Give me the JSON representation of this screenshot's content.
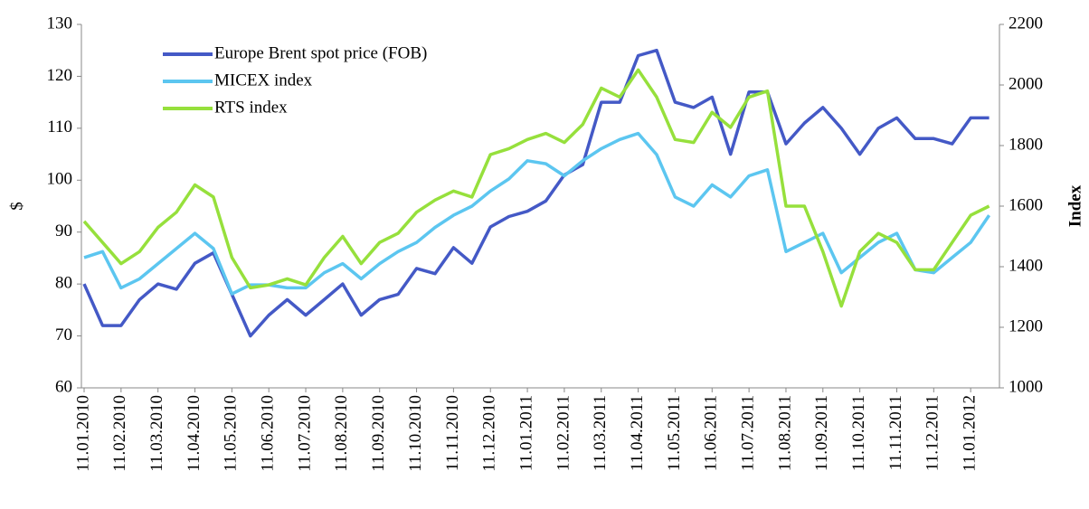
{
  "chart_data": {
    "type": "line",
    "ylabel": "$",
    "y2label": "Index",
    "categories": [
      "11.01.2010",
      null,
      "11.02.2010",
      null,
      "11.03.2010",
      null,
      "11.04.2010",
      null,
      "11.05.2010",
      null,
      "11.06.2010",
      null,
      "11.07.2010",
      null,
      "11.08.2010",
      null,
      "11.09.2010",
      null,
      "11.10.2010",
      null,
      "11.11.2010",
      null,
      "11.12.2010",
      null,
      "11.01.2011",
      null,
      "11.02.2011",
      null,
      "11.03.2011",
      null,
      "11.04.2011",
      null,
      "11.05.2011",
      null,
      "11.06.2011",
      null,
      "11.07.2011",
      null,
      "11.08.2011",
      null,
      "11.09.2011",
      null,
      "11.10.2011",
      null,
      "11.11.2011",
      null,
      "11.12.2011",
      null,
      "11.01.2012",
      null
    ],
    "series": [
      {
        "name": "Europe Brent spot price (FOB)",
        "color": "#4459c6",
        "axis": "y",
        "values": [
          80,
          72,
          72,
          77,
          80,
          79,
          84,
          86,
          78,
          70,
          74,
          77,
          74,
          77,
          80,
          74,
          77,
          78,
          83,
          82,
          87,
          84,
          91,
          93,
          94,
          96,
          101,
          103,
          115,
          115,
          124,
          125,
          115,
          114,
          116,
          105,
          117,
          117,
          107,
          111,
          114,
          110,
          105,
          110,
          112,
          108,
          108,
          107,
          112,
          112
        ]
      },
      {
        "name": "MICEX index",
        "color": "#5cc6f0",
        "axis": "y2",
        "values": [
          1430,
          1450,
          1330,
          1360,
          1410,
          1460,
          1510,
          1460,
          1310,
          1340,
          1340,
          1330,
          1330,
          1380,
          1410,
          1360,
          1410,
          1450,
          1480,
          1530,
          1570,
          1600,
          1650,
          1690,
          1750,
          1740,
          1700,
          1750,
          1790,
          1820,
          1840,
          1770,
          1630,
          1600,
          1670,
          1630,
          1700,
          1720,
          1450,
          1480,
          1510,
          1380,
          1430,
          1480,
          1510,
          1390,
          1380,
          1430,
          1480,
          1570
        ]
      },
      {
        "name": "RTS index",
        "color": "#96e03c",
        "axis": "y2",
        "values": [
          1550,
          1480,
          1410,
          1450,
          1530,
          1580,
          1670,
          1630,
          1430,
          1330,
          1340,
          1360,
          1340,
          1430,
          1500,
          1410,
          1480,
          1510,
          1580,
          1620,
          1650,
          1630,
          1770,
          1790,
          1820,
          1840,
          1810,
          1870,
          1990,
          1960,
          2050,
          1960,
          1820,
          1810,
          1910,
          1860,
          1960,
          1980,
          1600,
          1600,
          1450,
          1270,
          1450,
          1510,
          1480,
          1390,
          1390,
          1480,
          1570,
          1600
        ]
      }
    ],
    "ylim": [
      60,
      130
    ],
    "yticks": [
      60,
      70,
      80,
      90,
      100,
      110,
      120,
      130
    ],
    "y2lim": [
      1000,
      2200
    ],
    "y2ticks": [
      1000,
      1200,
      1400,
      1600,
      1800,
      2000,
      2200
    ],
    "grid": false,
    "legend": "upper left"
  }
}
